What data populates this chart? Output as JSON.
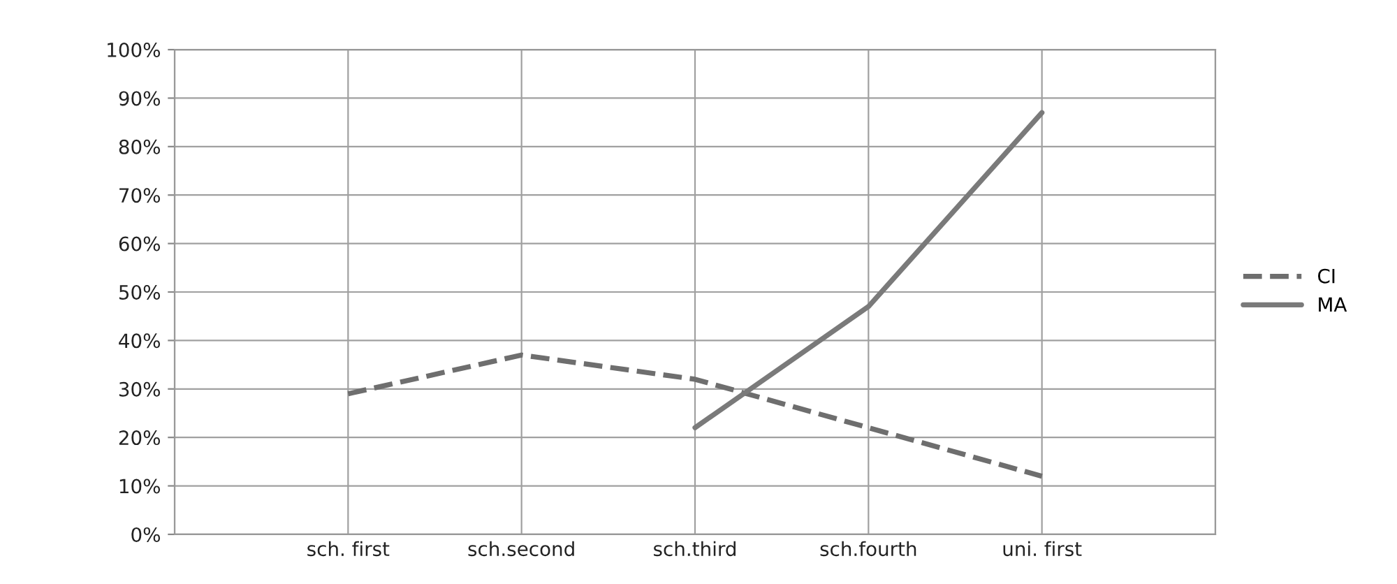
{
  "chart_data": {
    "type": "line",
    "categories": [
      null,
      "sch. first",
      "sch.second",
      "sch.third",
      "sch.fourth",
      "uni. first",
      null
    ],
    "series": [
      {
        "name": "CI",
        "color": "#6e6e6e",
        "line_style": "dashed",
        "values": [
          null,
          29,
          37,
          32,
          22,
          12,
          null
        ]
      },
      {
        "name": "MA",
        "color": "#7a7a7a",
        "line_style": "solid",
        "values": [
          null,
          null,
          null,
          22,
          47,
          87,
          null
        ]
      }
    ],
    "ylim": [
      0,
      100
    ],
    "yticks": [
      {
        "value": 0,
        "label": "0%"
      },
      {
        "value": 10,
        "label": "10%"
      },
      {
        "value": 20,
        "label": "20%"
      },
      {
        "value": 30,
        "label": "30%"
      },
      {
        "value": 40,
        "label": "40%"
      },
      {
        "value": 50,
        "label": "50%"
      },
      {
        "value": 60,
        "label": "60%"
      },
      {
        "value": 70,
        "label": "70%"
      },
      {
        "value": 80,
        "label": "80%"
      },
      {
        "value": 90,
        "label": "90%"
      },
      {
        "value": 100,
        "label": "100%"
      }
    ],
    "grid": true,
    "legend": "right",
    "marker": "none"
  }
}
